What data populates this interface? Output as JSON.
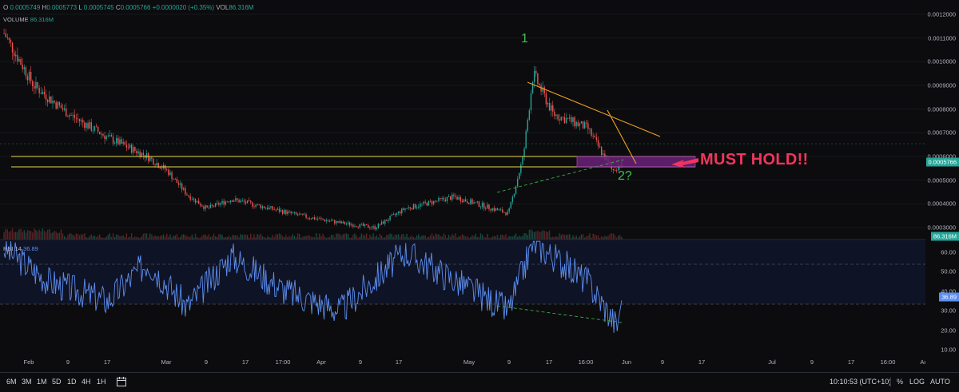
{
  "legend": {
    "o": "0.0005749",
    "h": "0.0005773",
    "l": "0.0005745",
    "c": "0.0005766",
    "change": "+0.0000020 (+0.35%)",
    "vol": "86.316M"
  },
  "volume_legend": {
    "label": "VOLUME",
    "value": "86.316M"
  },
  "rsi_legend": {
    "label": "RSI 14",
    "value": "36.89"
  },
  "price_axis": {
    "ticks": [
      "0.0012000",
      "0.0011000",
      "0.0010000",
      "0.0009000",
      "0.0008000",
      "0.0007000",
      "0.0006000",
      "0.0005000",
      "0.0004000",
      "0.0003000"
    ],
    "last_price": "0.0005766",
    "volume_badge": "86.316M"
  },
  "rsi_axis": {
    "ticks": [
      "60.00",
      "50.00",
      "40.00",
      "30.00",
      "20.00",
      "10.00"
    ],
    "current": "36.89"
  },
  "time_axis": [
    "Feb",
    "9",
    "17",
    "Mar",
    "9",
    "17",
    "17:00",
    "Apr",
    "9",
    "17",
    "May",
    "9",
    "17",
    "16:00",
    "Jun",
    "9",
    "17",
    "Jul",
    "9",
    "17",
    "16:00",
    "Au"
  ],
  "annotations": {
    "peak_label": "1",
    "wave_label": "2?",
    "must_hold": "MUST HOLD!!"
  },
  "bottom_bar": {
    "timeframes": [
      "6M",
      "3M",
      "1M",
      "5D",
      "1D",
      "4H",
      "1H"
    ],
    "clock": "10:10:53 (UTC+10)",
    "percent": "%",
    "log": "LOG",
    "auto": "AUTO"
  },
  "colors": {
    "up": "#26a69a",
    "down": "#ef5350",
    "rsi": "#5b8ef0",
    "support": "#e8d84a",
    "trend": "#f0a020",
    "zone": "#7a2a8a",
    "arrow": "#f0355c",
    "annot": "#3fbf4f"
  },
  "chart_data": {
    "type": "candlestick",
    "price_keypoints": [
      {
        "date": "Jan 27",
        "price": 0.00112
      },
      {
        "date": "Feb 2",
        "price": 0.0009
      },
      {
        "date": "Feb 9",
        "price": 0.00078
      },
      {
        "date": "Feb 17",
        "price": 0.00068
      },
      {
        "date": "Feb 25",
        "price": 0.0006
      },
      {
        "date": "Mar 1",
        "price": 0.00054
      },
      {
        "date": "Mar 5",
        "price": 0.00044
      },
      {
        "date": "Mar 9",
        "price": 0.00038
      },
      {
        "date": "Mar 14",
        "price": 0.00042
      },
      {
        "date": "Mar 18",
        "price": 0.0004
      },
      {
        "date": "Mar 28",
        "price": 0.00035
      },
      {
        "date": "Apr 5",
        "price": 0.00032
      },
      {
        "date": "Apr 12",
        "price": 0.0003
      },
      {
        "date": "Apr 18",
        "price": 0.00038
      },
      {
        "date": "Apr 28",
        "price": 0.00043
      },
      {
        "date": "May 9",
        "price": 0.00036
      },
      {
        "date": "May 12",
        "price": 0.0006
      },
      {
        "date": "May 14",
        "price": 0.00095
      },
      {
        "date": "May 18",
        "price": 0.00078
      },
      {
        "date": "May 25",
        "price": 0.00072
      },
      {
        "date": "May 30",
        "price": 0.00054
      },
      {
        "date": "Jun 1",
        "price": 0.0005766
      }
    ],
    "rsi_keypoints": [
      {
        "date": "Jan 27",
        "rsi": 62
      },
      {
        "date": "Feb 5",
        "rsi": 45
      },
      {
        "date": "Feb 17",
        "rsi": 35
      },
      {
        "date": "Feb 25",
        "rsi": 55
      },
      {
        "date": "Mar 5",
        "rsi": 32
      },
      {
        "date": "Mar 14",
        "rsi": 58
      },
      {
        "date": "Mar 25",
        "rsi": 40
      },
      {
        "date": "Apr 5",
        "rsi": 30
      },
      {
        "date": "Apr 18",
        "rsi": 60
      },
      {
        "date": "May 9",
        "rsi": 30
      },
      {
        "date": "May 14",
        "rsi": 65
      },
      {
        "date": "May 25",
        "rsi": 45
      },
      {
        "date": "May 31",
        "rsi": 22
      },
      {
        "date": "Jun 1",
        "rsi": 36.89
      }
    ],
    "support_levels": [
      0.00052,
      0.00047
    ],
    "ylim": [
      0.00025,
      0.00126
    ],
    "rsi_ylim": [
      6,
      66
    ]
  }
}
